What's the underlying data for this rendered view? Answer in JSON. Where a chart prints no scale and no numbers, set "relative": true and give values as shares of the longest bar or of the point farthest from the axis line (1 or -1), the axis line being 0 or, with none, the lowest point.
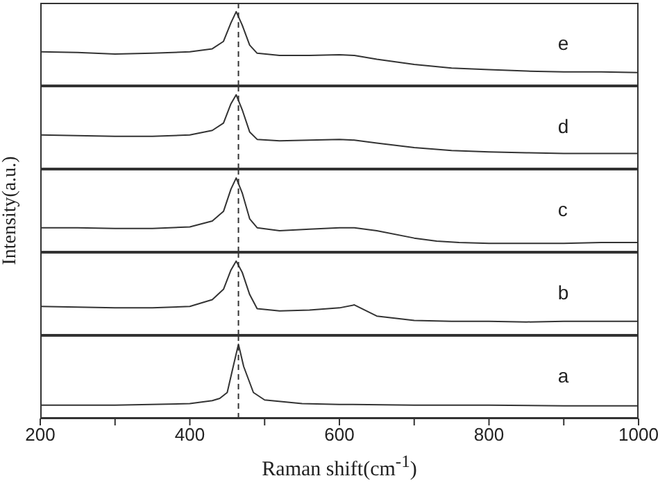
{
  "chart_data": [
    {
      "type": "line",
      "relative": true,
      "xlim": [
        200,
        1000
      ],
      "tick_labels": false,
      "color": "#333333",
      "ref_lines": [
        {
          "axis": "x",
          "value": 465,
          "line_style": "dashed"
        }
      ],
      "series": [
        {
          "name": "e",
          "x": [
            200,
            250,
            300,
            350,
            400,
            430,
            445,
            455,
            462,
            470,
            480,
            490,
            520,
            560,
            600,
            620,
            650,
            700,
            750,
            800,
            850,
            900,
            950,
            1000
          ],
          "values": [
            0.46,
            0.45,
            0.43,
            0.44,
            0.46,
            0.5,
            0.6,
            0.85,
            1,
            0.82,
            0.55,
            0.44,
            0.41,
            0.41,
            0.42,
            0.41,
            0.36,
            0.29,
            0.24,
            0.22,
            0.2,
            0.19,
            0.19,
            0.18
          ]
        }
      ]
    },
    {
      "type": "line",
      "relative": true,
      "xlim": [
        200,
        1000
      ],
      "tick_labels": false,
      "color": "#333333",
      "ref_lines": [
        {
          "axis": "x",
          "value": 465,
          "line_style": "dashed"
        }
      ],
      "series": [
        {
          "name": "d",
          "x": [
            200,
            250,
            300,
            350,
            400,
            430,
            445,
            455,
            462,
            470,
            480,
            490,
            520,
            560,
            600,
            620,
            650,
            700,
            750,
            800,
            850,
            900,
            950,
            1000
          ],
          "values": [
            0.46,
            0.45,
            0.44,
            0.44,
            0.46,
            0.52,
            0.62,
            0.88,
            1,
            0.8,
            0.5,
            0.4,
            0.38,
            0.39,
            0.4,
            0.39,
            0.35,
            0.29,
            0.25,
            0.23,
            0.22,
            0.21,
            0.21,
            0.21
          ]
        }
      ]
    },
    {
      "type": "line",
      "relative": true,
      "xlim": [
        200,
        1000
      ],
      "tick_labels": false,
      "color": "#333333",
      "ylabel": "Intensity(a.u.)",
      "ref_lines": [
        {
          "axis": "x",
          "value": 465,
          "line_style": "dashed"
        }
      ],
      "series": [
        {
          "name": "c",
          "x": [
            200,
            250,
            300,
            350,
            400,
            430,
            445,
            455,
            462,
            470,
            480,
            490,
            520,
            560,
            600,
            620,
            650,
            700,
            730,
            760,
            800,
            850,
            900,
            950,
            1000
          ],
          "values": [
            0.33,
            0.33,
            0.32,
            0.32,
            0.34,
            0.42,
            0.55,
            0.85,
            1,
            0.8,
            0.45,
            0.33,
            0.29,
            0.31,
            0.33,
            0.33,
            0.29,
            0.19,
            0.15,
            0.13,
            0.12,
            0.12,
            0.12,
            0.13,
            0.13
          ]
        }
      ]
    },
    {
      "type": "line",
      "relative": true,
      "xlim": [
        200,
        1000
      ],
      "tick_labels": false,
      "color": "#333333",
      "ref_lines": [
        {
          "axis": "x",
          "value": 465,
          "line_style": "dashed"
        }
      ],
      "series": [
        {
          "name": "b",
          "x": [
            200,
            250,
            300,
            350,
            400,
            430,
            445,
            455,
            462,
            470,
            480,
            490,
            520,
            560,
            600,
            620,
            650,
            700,
            750,
            800,
            850,
            900,
            950,
            1000
          ],
          "values": [
            0.39,
            0.38,
            0.37,
            0.37,
            0.39,
            0.48,
            0.62,
            0.88,
            1,
            0.85,
            0.55,
            0.36,
            0.33,
            0.34,
            0.37,
            0.41,
            0.26,
            0.2,
            0.19,
            0.19,
            0.18,
            0.19,
            0.19,
            0.19
          ]
        }
      ]
    },
    {
      "type": "line",
      "relative": true,
      "xlim": [
        200,
        1000
      ],
      "tick_labels": "x",
      "color": "#333333",
      "xlabel": "Raman shift(cm$^{-1}$)",
      "ref_lines": [
        {
          "axis": "x",
          "value": 465,
          "line_style": "dashed"
        }
      ],
      "xticks": [
        200,
        {
          "value": 300,
          "label": null
        },
        400,
        {
          "value": 500,
          "label": null
        },
        600,
        {
          "value": 700,
          "label": null
        },
        800,
        {
          "value": 900,
          "label": null
        },
        1000
      ],
      "series": [
        {
          "name": "a",
          "x": [
            200,
            300,
            400,
            430,
            440,
            450,
            458,
            465,
            472,
            485,
            500,
            550,
            600,
            700,
            800,
            900,
            1000
          ],
          "values": [
            0.18,
            0.18,
            0.2,
            0.24,
            0.27,
            0.35,
            0.7,
            1,
            0.7,
            0.35,
            0.25,
            0.2,
            0.19,
            0.18,
            0.18,
            0.17,
            0.17
          ]
        }
      ]
    }
  ]
}
